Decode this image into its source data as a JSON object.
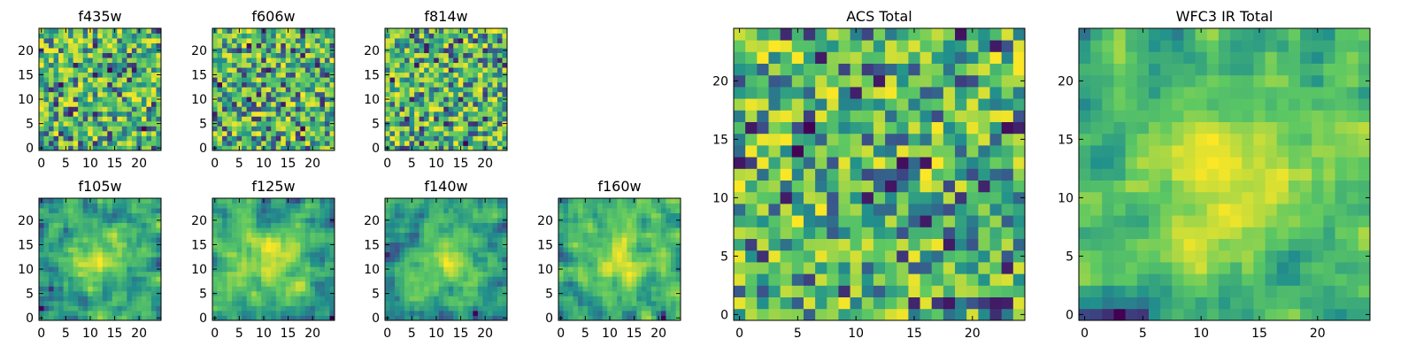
{
  "chart_data": [
    {
      "type": "heatmap",
      "title": "f435w",
      "size": 25,
      "xlim": [
        0,
        24
      ],
      "ylim": [
        0,
        24
      ],
      "xticks": [
        0,
        5,
        10,
        15,
        20
      ],
      "yticks": [
        0,
        5,
        10,
        15,
        20
      ],
      "seed": 11,
      "smooth": 0
    },
    {
      "type": "heatmap",
      "title": "f606w",
      "size": 25,
      "xlim": [
        0,
        24
      ],
      "ylim": [
        0,
        24
      ],
      "xticks": [
        0,
        5,
        10,
        15,
        20
      ],
      "yticks": [
        0,
        5,
        10,
        15,
        20
      ],
      "seed": 23,
      "smooth": 0
    },
    {
      "type": "heatmap",
      "title": "f814w",
      "size": 25,
      "xlim": [
        0,
        24
      ],
      "ylim": [
        0,
        24
      ],
      "xticks": [
        0,
        5,
        10,
        15,
        20
      ],
      "yticks": [
        0,
        5,
        10,
        15,
        20
      ],
      "seed": 37,
      "smooth": 0
    },
    {
      "type": "heatmap",
      "title": "f105w",
      "size": 25,
      "xlim": [
        0,
        24
      ],
      "ylim": [
        0,
        24
      ],
      "xticks": [
        0,
        5,
        10,
        15,
        20
      ],
      "yticks": [
        0,
        5,
        10,
        15,
        20
      ],
      "seed": 41,
      "smooth": 1
    },
    {
      "type": "heatmap",
      "title": "f125w",
      "size": 25,
      "xlim": [
        0,
        24
      ],
      "ylim": [
        0,
        24
      ],
      "xticks": [
        0,
        5,
        10,
        15,
        20
      ],
      "yticks": [
        0,
        5,
        10,
        15,
        20
      ],
      "seed": 53,
      "smooth": 1
    },
    {
      "type": "heatmap",
      "title": "f140w",
      "size": 25,
      "xlim": [
        0,
        24
      ],
      "ylim": [
        0,
        24
      ],
      "xticks": [
        0,
        5,
        10,
        15,
        20
      ],
      "yticks": [
        0,
        5,
        10,
        15,
        20
      ],
      "seed": 67,
      "smooth": 1
    },
    {
      "type": "heatmap",
      "title": "f160w",
      "size": 25,
      "xlim": [
        0,
        24
      ],
      "ylim": [
        0,
        24
      ],
      "xticks": [
        0,
        5,
        10,
        15,
        20
      ],
      "yticks": [
        0,
        5,
        10,
        15,
        20
      ],
      "seed": 79,
      "smooth": 1
    },
    {
      "type": "heatmap",
      "title": "ACS Total",
      "size": 25,
      "xlim": [
        0,
        24
      ],
      "ylim": [
        0,
        24
      ],
      "xticks": [
        0,
        5,
        10,
        15,
        20
      ],
      "yticks": [
        0,
        5,
        10,
        15,
        20
      ],
      "seed": 83,
      "smooth": 0
    },
    {
      "type": "heatmap",
      "title": "WFC3 IR Total",
      "size": 25,
      "xlim": [
        0,
        24
      ],
      "ylim": [
        0,
        24
      ],
      "xticks": [
        0,
        5,
        10,
        15,
        20
      ],
      "yticks": [
        0,
        5,
        10,
        15,
        20
      ],
      "seed": 97,
      "smooth": 1
    }
  ],
  "colormap": [
    "#440154",
    "#3b528b",
    "#21918c",
    "#5ec962",
    "#fde725"
  ]
}
